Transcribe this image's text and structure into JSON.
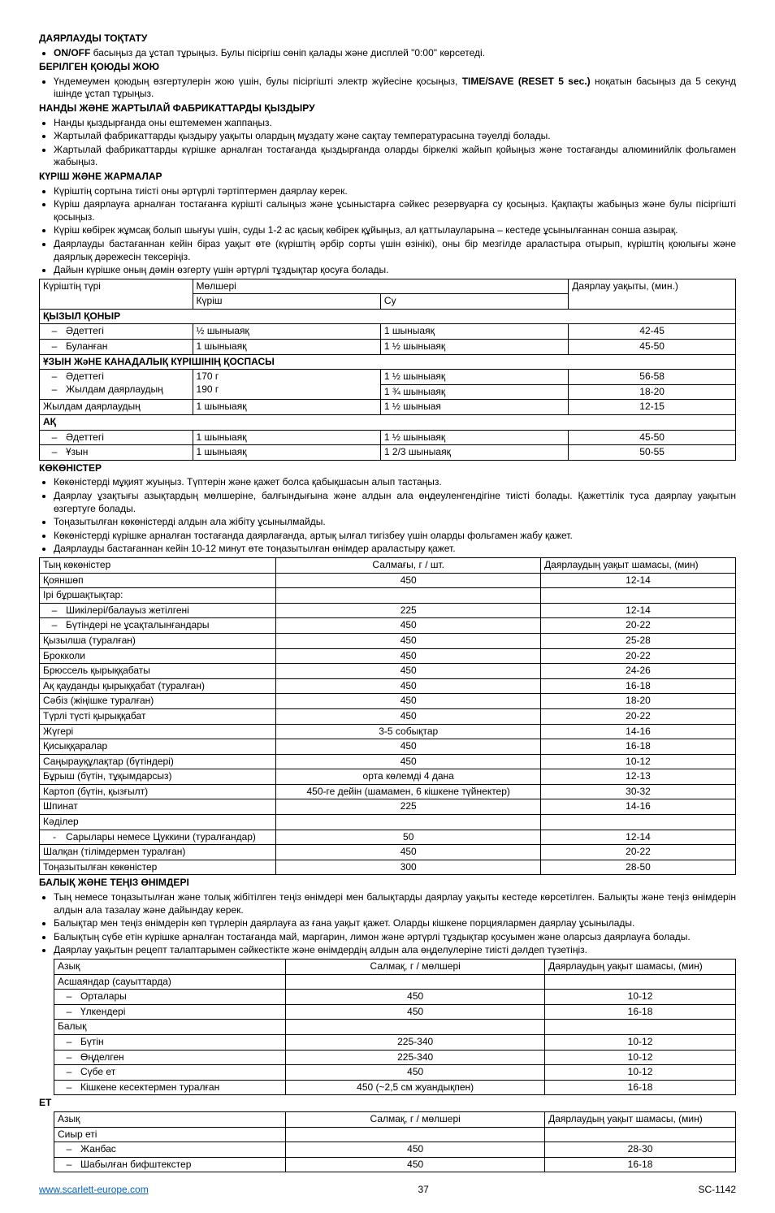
{
  "headings": {
    "stop": "ДАЯРЛАУДЫ ТОҚТАТУ",
    "reset": "БЕРІЛГЕН ҚОЮДЫ ЖОЮ",
    "bread": "НАНДЫ ЖӘНЕ ЖАРТЫЛАЙ ФАБРИКАТТАРДЫ ҚЫЗДЫРУ",
    "rice": "КҮРІШ ЖӘНЕ ЖАРМАЛАР",
    "veg": "КӨКӨНІСТЕР",
    "fish": "БАЛЫҚ ЖӘНЕ ТЕҢІЗ ӨНІМДЕРІ",
    "meat": "ЕТ"
  },
  "stop_items": [
    {
      "pre": "",
      "bold": "ON/OFF",
      "post": " басыңыз да ұстап тұрыңыз. Булы пісіргіш сөніп қалады және дисплей \"0:00\" көрсетеді."
    }
  ],
  "reset_items": [
    {
      "pre": "Үндемеумен қоюдың өзгертулерін жою үшін, булы пісіргішті электр жүйесіне қосыңыз, ",
      "bold": "TIME/SAVE (RESET 5 sec.)",
      "post": " ноқатын басыңыз да 5 секунд ішінде ұстап тұрыңыз."
    }
  ],
  "bread_items": [
    "Нанды қыздырғанда оны ештемемен жаппаңыз.",
    "Жартылай фабрикаттарды қыздыру уақыты олардың мұздату және сақтау температурасына тәуелді болады.",
    "Жартылай фабрикаттарды күрішке арналған тостағанда қыздырғанда оларды біркелкі жайып қойыңыз және тостағанды алюминийлік фольгамен жабыңыз."
  ],
  "rice_items": [
    "Күріштің сортына тиісті оны әртүрлі тәртіптермен даярлау керек.",
    "Күріш даярлауға арналған тостағанға күрішті салыңыз және ұсыныстарға сәйкес резервуарға су қосыңыз. Қақпақты жабыңыз және булы пісіргішті қосыңыз.",
    "Күріш көбірек жұмсақ болып шығуы үшін, суды 1-2 ас қасық көбірек құйыңыз, ал қаттылауларына – кестеде ұсынылғаннан сонша азырақ.",
    "Даярлауды бастағаннан кейін біраз уақыт өте (күріштің әрбір сорты үшін өзінікі), оны бір мезгілде араластыра отырып, күріштің қоюлығы және даярлық дәрежесін тексеріңіз.",
    "Дайын күрішке оның дәмін өзгерту үшін әртүрлі тұздықтар қосуға болады."
  ],
  "rice_table": {
    "head": {
      "type": "Күріштің түрі",
      "amount": "Мөлшері",
      "rice": "Күріш",
      "water": "Су",
      "time": "Даярлау уақыты, (мин.)"
    },
    "groups": [
      {
        "title": "ҚЫЗЫЛ ҚОНЫР",
        "rows": [
          {
            "name": "Әдеттегі",
            "rice": "½ шыныаяқ",
            "water": "1 шыныаяқ",
            "time": "42-45",
            "dash": true
          },
          {
            "name": "Буланған",
            "rice": "1 шыныаяқ",
            "water": "1 ½ шыныаяқ",
            "time": "45-50",
            "dash": true
          }
        ]
      },
      {
        "title": "ҰЗЫН ЖәНЕ КАНАДАЛЫҚ КҮРІШІНІҢ ҚОСПАСЫ",
        "rows": [
          {
            "name": "Әдеттегі",
            "rice": "170 г",
            "water": "1 ½ шыныаяқ",
            "time": "56-58",
            "dash": true,
            "merge": 3
          },
          {
            "name": "Жылдам даярлаудың",
            "rice": "190 г",
            "water": "1 ¾ шыныаяқ",
            "time": "18-20",
            "dash": true
          }
        ]
      },
      {
        "plainrow": {
          "name": "Жылдам даярлаудың",
          "rice": "1 шыныаяқ",
          "water": "1 ½ шыныая",
          "time": "12-15"
        }
      },
      {
        "title": "АҚ",
        "rows": [
          {
            "name": "Әдеттегі",
            "rice": "1 шыныаяқ",
            "water": "1 ½ шыныаяқ",
            "time": "45-50",
            "dash": true
          },
          {
            "name": "Ұзын",
            "rice": "1 шыныаяқ",
            "water": "1 2/3 шыныаяқ",
            "time": "50-55",
            "dash": true
          }
        ]
      }
    ]
  },
  "veg_items": [
    "Көкөністерді мұқият жуыңыз. Түптерін және қажет болса қабықшасын алып тастаңыз.",
    "Даярлау ұзақтығы азықтардың мөлшеріне, балғындығына және алдын ала өңдеуленгендігіне тиісті болады. Қажеттілік туса даярлау уақытын өзгертуге болады.",
    "Тоңазытылған көкөністерді алдын ала жібіту ұсынылмайды.",
    "Көкөністерді күрішке арналған тостағанда даярлағанда, артық ылғал тигізбеу үшін оларды фольгамен жабу қажет.",
    "Даярлауды бастағаннан кейін 10-12 минут өте тоңазытылған өнімдер араластыру қажет."
  ],
  "veg_table": {
    "head": {
      "name": "Тың көкөністер",
      "amt": "Салмағы, г / шт.",
      "time": "Даярлаудың  уақыт шамасы, (мин)"
    },
    "rows": [
      {
        "name": "Қояншөп",
        "amt": "450",
        "time": "12-14"
      },
      {
        "name": "Ірі бұршақтықтар:",
        "amt": "",
        "time": ""
      },
      {
        "name": "Шикілері/балауыз жетілгені",
        "amt": "225",
        "time": "12-14",
        "dash": true
      },
      {
        "name": "Бүтіндері не ұсақталынғандары",
        "amt": "450",
        "time": "20-22",
        "dash": true
      },
      {
        "name": "Қызылша (туралған)",
        "amt": "450",
        "time": "25-28"
      },
      {
        "name": "Брокколи",
        "amt": "450",
        "time": "20-22"
      },
      {
        "name": "Брюссель қырыққабаты",
        "amt": "450",
        "time": "24-26"
      },
      {
        "name": "Ақ қауданды қырыққабат (туралған)",
        "amt": "450",
        "time": "16-18"
      },
      {
        "name": "Сәбіз (жіңішке туралған)",
        "amt": "450",
        "time": "18-20"
      },
      {
        "name": "Түрлі түсті қырыққабат",
        "amt": "450",
        "time": "20-22"
      },
      {
        "name": "Жүгері",
        "amt": "3-5 собықтар",
        "time": "14-16"
      },
      {
        "name": "Қисыққаралар",
        "amt": "450",
        "time": "16-18"
      },
      {
        "name": "Саңырауқұлақтар (бүтіндері)",
        "amt": "450",
        "time": "10-12"
      },
      {
        "name": "Бұрыш (бүтін, тұқымдарсыз)",
        "amt": "орта көлемді 4 дана",
        "time": "12-13"
      },
      {
        "name": "Картоп (бүтін, қызғылт)",
        "amt": "450-ге дейін (шамамен, 6 кішкене түйнектер)",
        "time": "30-32"
      },
      {
        "name": "Шпинат",
        "amt": "225",
        "time": "14-16"
      },
      {
        "name": "Кәділер",
        "amt": "",
        "time": ""
      },
      {
        "name": "Сарылары немесе Цуккини (туралғандар)",
        "amt": "50",
        "time": "12-14",
        "dash2": true
      },
      {
        "name": "Шалқан (тілімдермен туралған)",
        "amt": "450",
        "time": "20-22"
      },
      {
        "name": "Тоңазытылған көкөністер",
        "amt": "300",
        "time": "28-50"
      }
    ]
  },
  "fish_items": [
    "Тың немесе тоңазытылған және толық жібітілген теңіз өнімдері мен балықтарды даярлау уақыты кестеде көрсетілген. Балықты және теңіз өнімдерін алдын ала тазалау және дайындау керек.",
    "Балықтар мен теңіз өнімдерін көп түрлерін даярлауға аз ғана уақыт қажет. Оларды  кішкене порциялармен даярлау ұсынылады.",
    "Балықтың сүбе етін күрішке арналған тостағанда май, маргарин, лимон және әртүрлі тұздықтар қосуымен және оларсыз даярлауға болады.",
    "Даярлау уақытын рецепт талаптарымен сәйкестікте және өнімдердің алдын ала өңделулеріне тиісті дәлдеп түзетіңіз."
  ],
  "fish_table": {
    "head": {
      "name": "Азық",
      "amt": "Салмақ, г / мөлшері",
      "time": "Даярлаудың  уақыт шамасы, (мин)"
    },
    "rows": [
      {
        "name": "Асшаяндар (сауыттарда)",
        "amt": "",
        "time": ""
      },
      {
        "name": "Орталары",
        "amt": "450",
        "time": "10-12",
        "dash": true
      },
      {
        "name": "Үлкендері",
        "amt": "450",
        "time": "16-18",
        "dash": true
      },
      {
        "name": "Балық",
        "amt": "",
        "time": ""
      },
      {
        "name": "Бүтін",
        "amt": "225-340",
        "time": "10-12",
        "dash": true
      },
      {
        "name": "Өңделген",
        "amt": "225-340",
        "time": "10-12",
        "dash": true
      },
      {
        "name": "Сүбе ет",
        "amt": "450",
        "time": "10-12",
        "dash": true
      },
      {
        "name": "Кішкене кесектермен туралған",
        "amt": "450 (~2,5 см жуандықпен)",
        "time": "16-18",
        "dash": true
      }
    ]
  },
  "meat_table": {
    "head": {
      "name": "Азық",
      "amt": "Салмақ, г / мөлшері",
      "time": "Даярлаудың  уақыт шамасы, (мин)"
    },
    "rows": [
      {
        "name": "Сиыр еті",
        "amt": "",
        "time": ""
      },
      {
        "name": "Жанбас",
        "amt": "450",
        "time": "28-30",
        "dash": true
      },
      {
        "name": "Шабылған бифштекстер",
        "amt": "450",
        "time": "16-18",
        "dash": true
      }
    ]
  },
  "footer": {
    "url": "www.scarlett-europe.com",
    "page": "37",
    "model": "SC-1142"
  }
}
